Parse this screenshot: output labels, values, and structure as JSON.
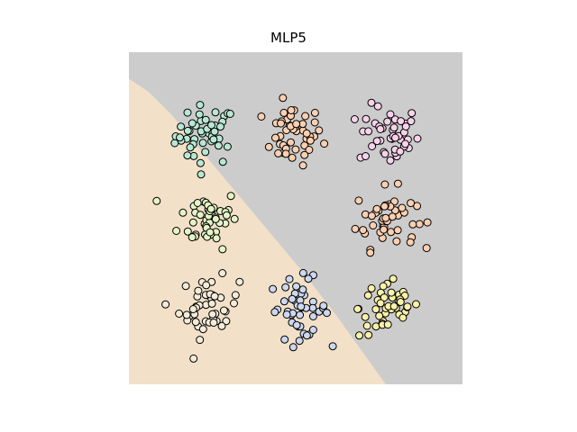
{
  "chart_data": {
    "type": "scatter",
    "title": "MLP5",
    "xlabel": "",
    "ylabel": "",
    "xlim": [
      0,
      10
    ],
    "ylim": [
      0,
      10
    ],
    "axes_visible": false,
    "decision_regions": [
      {
        "name": "class-0-region",
        "color": "#f2e0c8",
        "boundary": [
          [
            0,
            9.2
          ],
          [
            0.6,
            8.8
          ],
          [
            1.3,
            8.1
          ],
          [
            2.2,
            7.0
          ],
          [
            3.2,
            5.8
          ],
          [
            4.2,
            4.6
          ],
          [
            5.2,
            3.4
          ],
          [
            6.2,
            2.1
          ],
          [
            7.2,
            0.7
          ],
          [
            7.7,
            0
          ]
        ]
      },
      {
        "name": "class-1-region",
        "color": "#cccccc"
      }
    ],
    "series": [
      {
        "name": "cluster-top-left",
        "color": "#b7e8d3",
        "center": [
          2.3,
          7.5
        ],
        "spread": 0.45,
        "count": 45
      },
      {
        "name": "cluster-top-middle",
        "color": "#fbcfb0",
        "center": [
          4.9,
          7.5
        ],
        "spread": 0.45,
        "count": 45
      },
      {
        "name": "cluster-top-right",
        "color": "#f8d1ea",
        "center": [
          7.8,
          7.5
        ],
        "spread": 0.45,
        "count": 45
      },
      {
        "name": "cluster-middle-left",
        "color": "#e4f5c5",
        "center": [
          2.4,
          5.0
        ],
        "spread": 0.45,
        "count": 45
      },
      {
        "name": "cluster-middle-right",
        "color": "#fbcfb0",
        "center": [
          7.7,
          5.0
        ],
        "spread": 0.45,
        "count": 45
      },
      {
        "name": "cluster-bottom-left",
        "color": "#f4ebd8",
        "center": [
          2.4,
          2.3
        ],
        "spread": 0.45,
        "count": 45
      },
      {
        "name": "cluster-bottom-middle",
        "color": "#cdd8ee",
        "center": [
          5.1,
          2.3
        ],
        "spread": 0.45,
        "count": 45
      },
      {
        "name": "cluster-bottom-right",
        "color": "#faf1a8",
        "center": [
          7.8,
          2.3
        ],
        "spread": 0.45,
        "count": 45
      }
    ]
  }
}
